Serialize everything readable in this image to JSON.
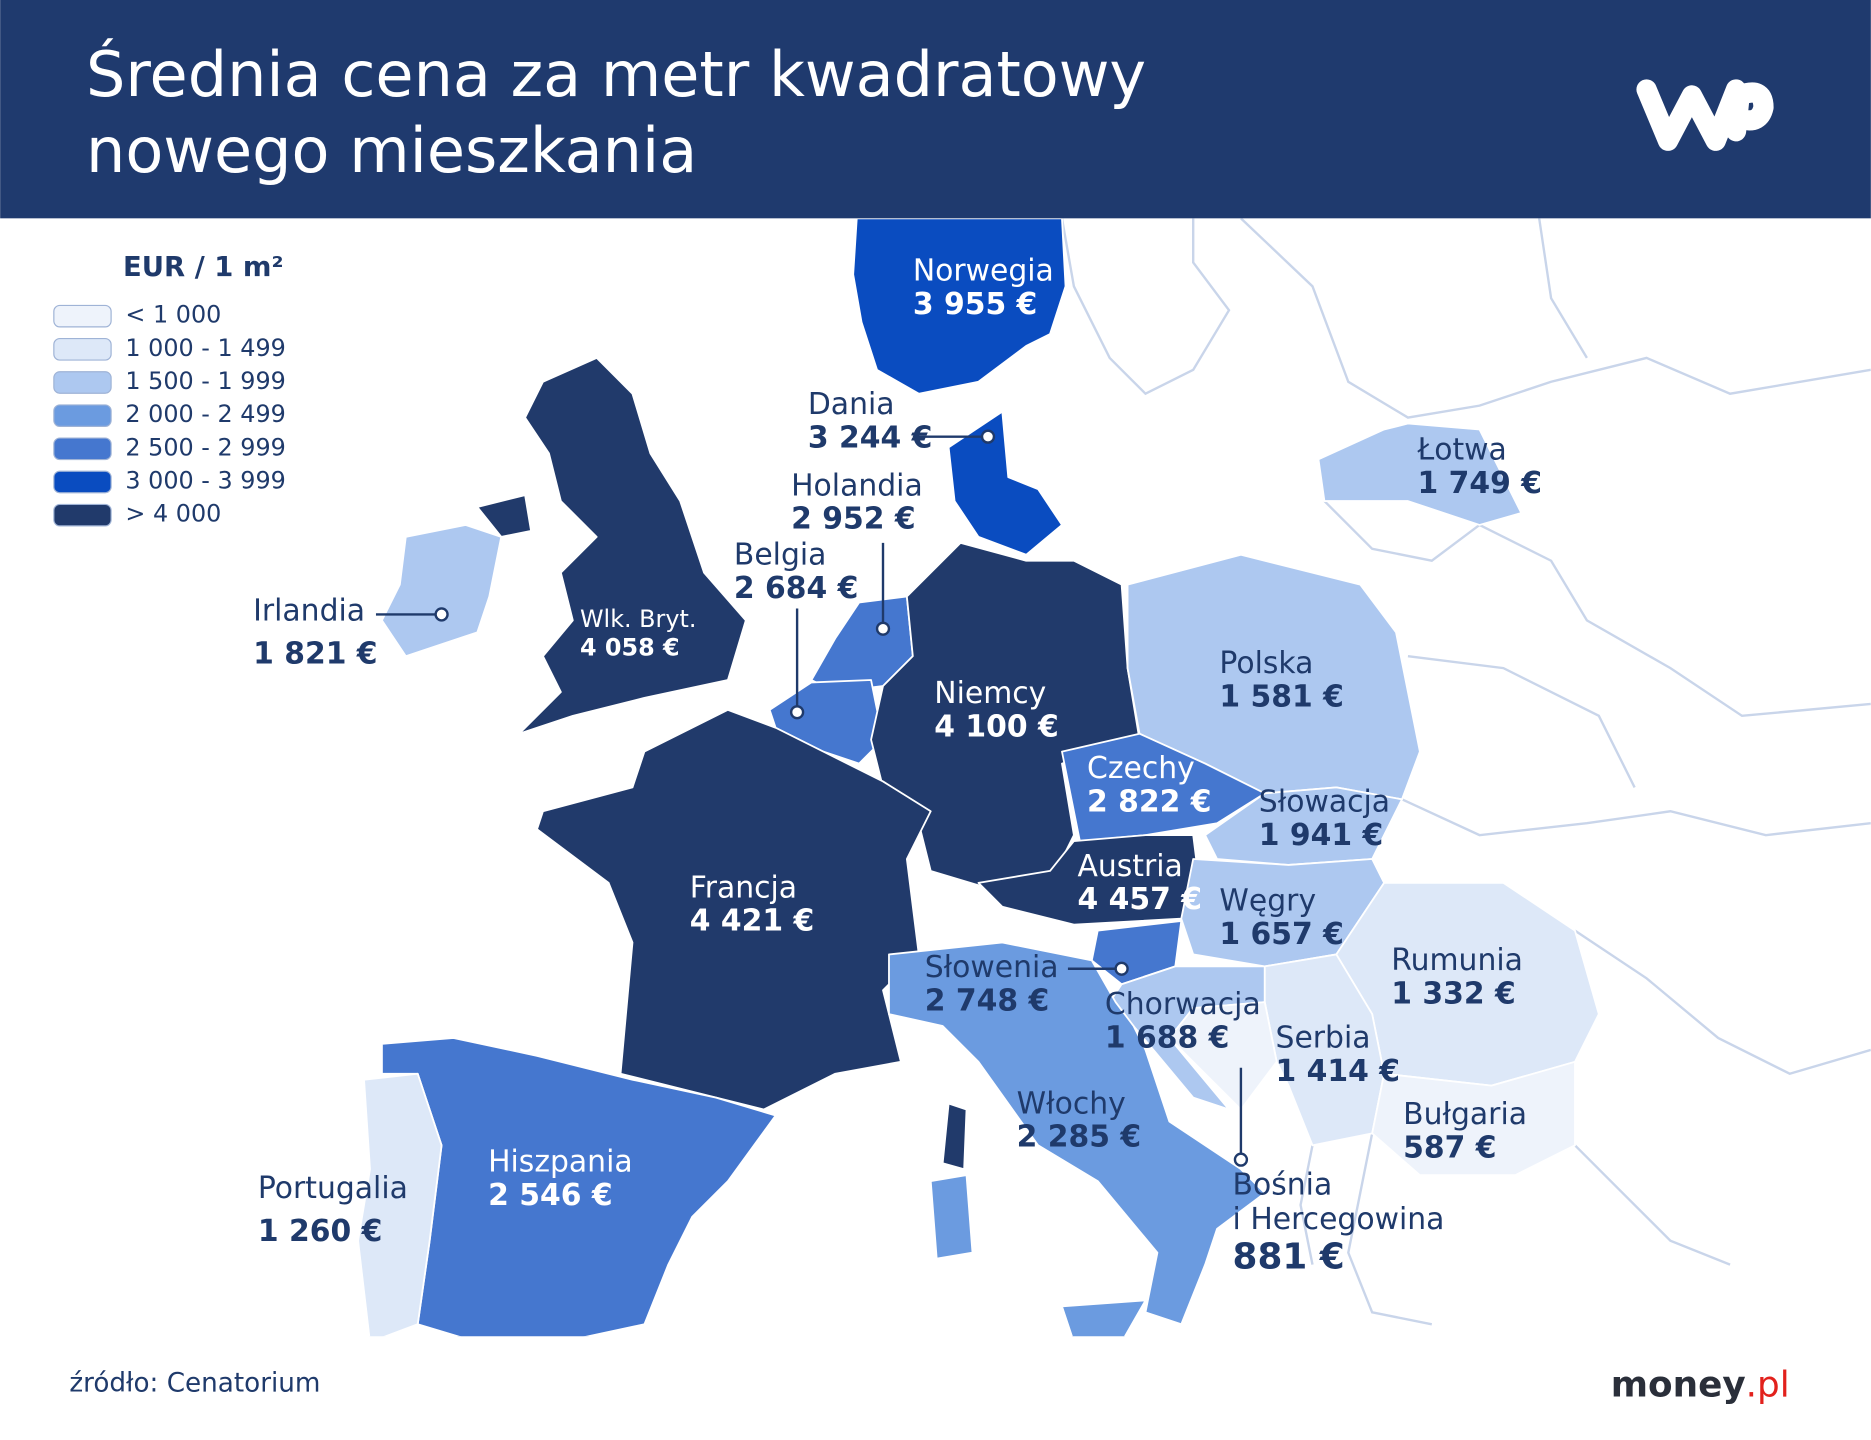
{
  "header": {
    "title": [
      "Średnia cena za metr kwadratowy",
      "nowego mieszkania"
    ]
  },
  "legend": {
    "title": "EUR / 1 m²",
    "items": [
      {
        "label": "< 1 000",
        "color": "#eef3fb"
      },
      {
        "label": "1 000 - 1 499",
        "color": "#dde8f8"
      },
      {
        "label": "1 500 - 1 999",
        "color": "#adc8f0"
      },
      {
        "label": "2 000 - 2 499",
        "color": "#6b9be0"
      },
      {
        "label": "2 500 - 2 999",
        "color": "#4577cf"
      },
      {
        "label": "3 000 - 3 999",
        "color": "#0a4cc0"
      },
      {
        "label": "> 4 000",
        "color": "#213a6b"
      }
    ]
  },
  "countries": [
    {
      "name": "Norwegia",
      "value": "3 955 €",
      "color": "#0a4cc0"
    },
    {
      "name": "Dania",
      "value": "3 244 €",
      "color": "#0a4cc0"
    },
    {
      "name": "Łotwa",
      "value": "1 749 €",
      "color": "#adc8f0"
    },
    {
      "name": "Holandia",
      "value": "2 952 €",
      "color": "#4577cf"
    },
    {
      "name": "Belgia",
      "value": "2 684 €",
      "color": "#4577cf"
    },
    {
      "name": "Irlandia",
      "value": "1 821 €",
      "color": "#adc8f0"
    },
    {
      "name": "Wlk. Bryt.",
      "value": "4 058 €",
      "color": "#213a6b"
    },
    {
      "name": "Niemcy",
      "value": "4 100 €",
      "color": "#213a6b"
    },
    {
      "name": "Polska",
      "value": "1 581 €",
      "color": "#adc8f0"
    },
    {
      "name": "Czechy",
      "value": "2 822 €",
      "color": "#4577cf"
    },
    {
      "name": "Słowacja",
      "value": "1 941 €",
      "color": "#adc8f0"
    },
    {
      "name": "Austria",
      "value": "4 457 €",
      "color": "#213a6b"
    },
    {
      "name": "Węgry",
      "value": "1 657 €",
      "color": "#adc8f0"
    },
    {
      "name": "Francja",
      "value": "4 421 €",
      "color": "#213a6b"
    },
    {
      "name": "Słowenia",
      "value": "2 748 €",
      "color": "#4577cf"
    },
    {
      "name": "Chorwacja",
      "value": "1 688 €",
      "color": "#adc8f0"
    },
    {
      "name": "Rumunia",
      "value": "1 332 €",
      "color": "#dde8f8"
    },
    {
      "name": "Serbia",
      "value": "1 414 €",
      "color": "#dde8f8"
    },
    {
      "name": "Bułgaria",
      "value": "587 €",
      "color": "#eef3fb"
    },
    {
      "name": [
        "Bośnia",
        "i Hercegowina"
      ],
      "value": "881 €",
      "color": "#eef3fb"
    },
    {
      "name": "Włochy",
      "value": "2 285 €",
      "color": "#6b9be0"
    },
    {
      "name": "Hiszpania",
      "value": "2 546 €",
      "color": "#4577cf"
    },
    {
      "name": "Portugalia",
      "value": "1 260 €",
      "color": "#dde8f8"
    }
  ],
  "footer": {
    "source": "źródło: Cenatorium",
    "brand": "money",
    "brand_suffix": ".pl"
  }
}
